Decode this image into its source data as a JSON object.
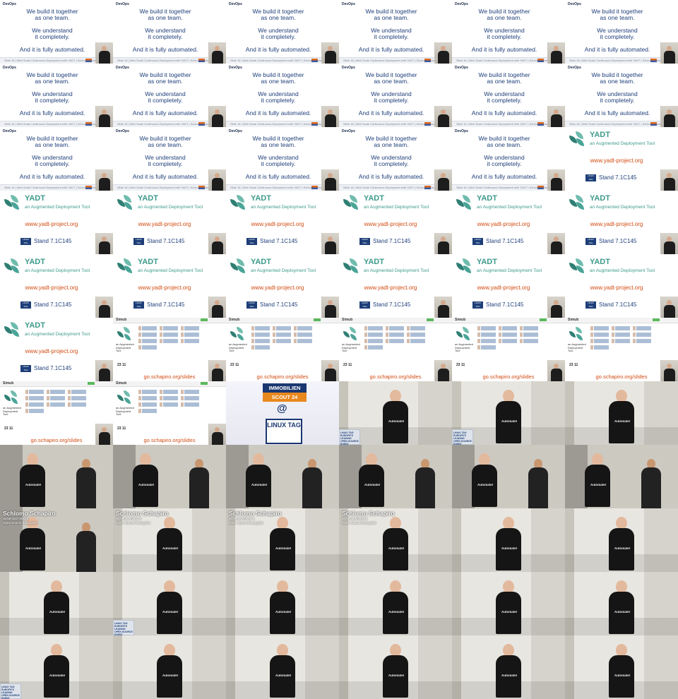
{
  "slides": {
    "devops": {
      "tag": "DevOps",
      "line1": "We build it together",
      "line2": "as one team.",
      "line3": "We understand",
      "line4": "it completely.",
      "line5": "And it is fully automated.",
      "footer": "Slide 18  |  Web Scale Continuous Deployment with YADT  |  Schlomo Schapiro"
    },
    "yadt": {
      "name": "YADT",
      "subtitle": "an Augmented Deployment Tool",
      "url": "www.yadt-project.org",
      "badge": "LINUX TAG",
      "stand": "Stand 7.1C145"
    },
    "screenshot": {
      "brand": "Simub",
      "caption": "an Augmented Deployment Tool",
      "nums": "23   11",
      "url": "go.schapiro.org/slides"
    },
    "sponsor": {
      "line1": "IMMOBILIEN",
      "line2": "SCOUT 24",
      "at": "@",
      "event": "LINUX TAG"
    }
  },
  "stage": {
    "shirt": "Automate!",
    "lectern": "LINUX TAG EUROPE'S LEADING OPEN SOURCE EVENT",
    "speaker_name": "Schlomo Schapiro",
    "speaker_role_1": "Systemarchitekt &",
    "speaker_role_2": "Open Source Evangelist"
  },
  "grid": {
    "cols": 6,
    "rows": 11,
    "cells": [
      "devops",
      "devops",
      "devops",
      "devops",
      "devops",
      "devops",
      "devops",
      "devops",
      "devops",
      "devops",
      "devops",
      "devops",
      "devops",
      "devops",
      "devops",
      "devops",
      "devops",
      "yadt",
      "yadt",
      "yadt",
      "yadt",
      "yadt",
      "yadt",
      "yadt",
      "yadt",
      "yadt",
      "yadt",
      "yadt",
      "yadt",
      "yadt",
      "yadt",
      "screenshot",
      "screenshot",
      "screenshot",
      "screenshot",
      "screenshot",
      "screenshot",
      "screenshot",
      "sponsor",
      "stage_lectern",
      "stage_lectern",
      "stage",
      "stage_two",
      "stage_two",
      "stage_two",
      "stage_two",
      "stage_two",
      "stage_two",
      "stage_name_two",
      "stage_name",
      "stage_name",
      "stage_name",
      "stage",
      "stage",
      "stage",
      "stage_lectern",
      "stage",
      "stage",
      "stage",
      "stage",
      "stage_lectern",
      "stage",
      "stage",
      "stage",
      "stage",
      "stage"
    ]
  }
}
